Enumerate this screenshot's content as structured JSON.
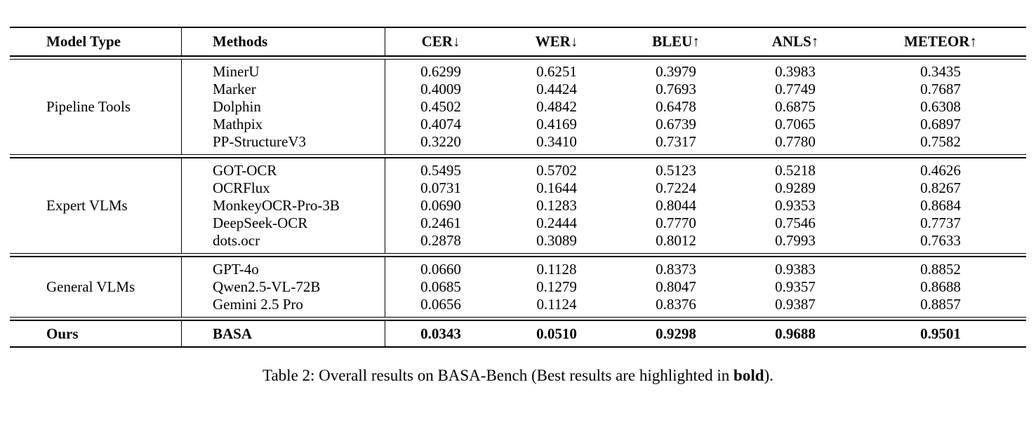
{
  "table": {
    "columns": [
      "Model Type",
      "Methods",
      "CER↓",
      "WER↓",
      "BLEU↑",
      "ANLS↑",
      "METEOR↑"
    ],
    "groups": [
      {
        "model_type": "Pipeline Tools",
        "rows": [
          {
            "method": "MinerU",
            "values": [
              "0.6299",
              "0.6251",
              "0.3979",
              "0.3983",
              "0.3435"
            ]
          },
          {
            "method": "Marker",
            "values": [
              "0.4009",
              "0.4424",
              "0.7693",
              "0.7749",
              "0.7687"
            ]
          },
          {
            "method": "Dolphin",
            "values": [
              "0.4502",
              "0.4842",
              "0.6478",
              "0.6875",
              "0.6308"
            ]
          },
          {
            "method": "Mathpix",
            "values": [
              "0.4074",
              "0.4169",
              "0.6739",
              "0.7065",
              "0.6897"
            ]
          },
          {
            "method": "PP-StructureV3",
            "values": [
              "0.3220",
              "0.3410",
              "0.7317",
              "0.7780",
              "0.7582"
            ]
          }
        ]
      },
      {
        "model_type": "Expert VLMs",
        "rows": [
          {
            "method": "GOT-OCR",
            "values": [
              "0.5495",
              "0.5702",
              "0.5123",
              "0.5218",
              "0.4626"
            ]
          },
          {
            "method": "OCRFlux",
            "values": [
              "0.0731",
              "0.1644",
              "0.7224",
              "0.9289",
              "0.8267"
            ]
          },
          {
            "method": "MonkeyOCR-Pro-3B",
            "values": [
              "0.0690",
              "0.1283",
              "0.8044",
              "0.9353",
              "0.8684"
            ]
          },
          {
            "method": "DeepSeek-OCR",
            "values": [
              "0.2461",
              "0.2444",
              "0.7770",
              "0.7546",
              "0.7737"
            ]
          },
          {
            "method": "dots.ocr",
            "values": [
              "0.2878",
              "0.3089",
              "0.8012",
              "0.7993",
              "0.7633"
            ]
          }
        ]
      },
      {
        "model_type": "General VLMs",
        "rows": [
          {
            "method": "GPT-4o",
            "values": [
              "0.0660",
              "0.1128",
              "0.8373",
              "0.9383",
              "0.8852"
            ]
          },
          {
            "method": "Qwen2.5-VL-72B",
            "values": [
              "0.0685",
              "0.1279",
              "0.8047",
              "0.9357",
              "0.8688"
            ]
          },
          {
            "method": "Gemini 2.5 Pro",
            "values": [
              "0.0656",
              "0.1124",
              "0.8376",
              "0.9387",
              "0.8857"
            ]
          }
        ]
      }
    ],
    "ours": {
      "model_type": "Ours",
      "method": "BASA",
      "values": [
        "0.0343",
        "0.0510",
        "0.9298",
        "0.9688",
        "0.9501"
      ]
    }
  },
  "caption": {
    "prefix": "Table 2: Overall results on BASA-Bench (Best results are highlighted in ",
    "bold_word": "bold",
    "suffix": ")."
  }
}
